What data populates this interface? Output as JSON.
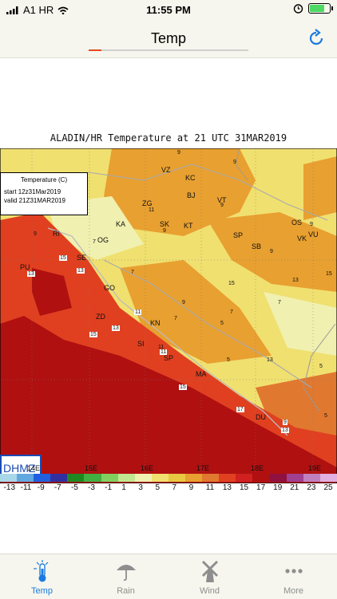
{
  "status_bar": {
    "carrier": "A1 HR",
    "time": "11:55 PM"
  },
  "navbar": {
    "title": "Temp",
    "load_progress": 0.08
  },
  "map": {
    "title": "ALADIN/HR Temperature at 21 UTC 31MAR2019",
    "info_box": {
      "label": "Temperature (C)",
      "start": "start  12z31Mar2019",
      "valid": "valid  21Z31MAR2019"
    },
    "watermark": "DHMZ",
    "longitudes": [
      "14E",
      "15E",
      "16E",
      "17E",
      "18E",
      "19E"
    ],
    "cities": [
      "VZ",
      "KC",
      "ZG",
      "BJ",
      "VT",
      "KA",
      "SK",
      "KT",
      "OS",
      "VK",
      "VU",
      "RI",
      "SE",
      "OG",
      "SP",
      "SB",
      "PU",
      "GO",
      "ZD",
      "KN",
      "SI",
      "SP",
      "MA",
      "DU"
    ],
    "values": [
      "9",
      "9",
      "11",
      "9",
      "9",
      "9",
      "9",
      "7",
      "7",
      "9",
      "15",
      "13",
      "7",
      "7",
      "5",
      "7",
      "11",
      "5",
      "13",
      "5",
      "5",
      "15",
      "9",
      "11",
      "7",
      "5",
      "9",
      "5",
      "15",
      "17",
      "3",
      "7",
      "9",
      "13",
      "7"
    ],
    "boxed_values": [
      "9",
      "15",
      "13",
      "11",
      "13",
      "15",
      "9",
      "11",
      "15",
      "17",
      "13"
    ]
  },
  "legend": {
    "ticks": [
      "-13",
      "-11",
      "-9",
      "-7",
      "-5",
      "-3",
      "-1",
      "1",
      "3",
      "5",
      "7",
      "9",
      "11",
      "13",
      "15",
      "17",
      "19",
      "21",
      "23",
      "25"
    ],
    "colors": [
      "#a8d8e8",
      "#60a8e0",
      "#2060e0",
      "#3030a0",
      "#208820",
      "#40b040",
      "#80d060",
      "#c0e890",
      "#f0f0b0",
      "#f0e070",
      "#e8c840",
      "#e8a030",
      "#e07830",
      "#e04020",
      "#d02020",
      "#b01010",
      "#901040",
      "#a04090",
      "#c080c0",
      "#e0b0e0"
    ]
  },
  "tabs": [
    {
      "label": "Temp",
      "icon": "thermometer-icon"
    },
    {
      "label": "Rain",
      "icon": "umbrella-icon"
    },
    {
      "label": "Wind",
      "icon": "windmill-icon"
    },
    {
      "label": "More",
      "icon": "more-dots-icon"
    }
  ]
}
